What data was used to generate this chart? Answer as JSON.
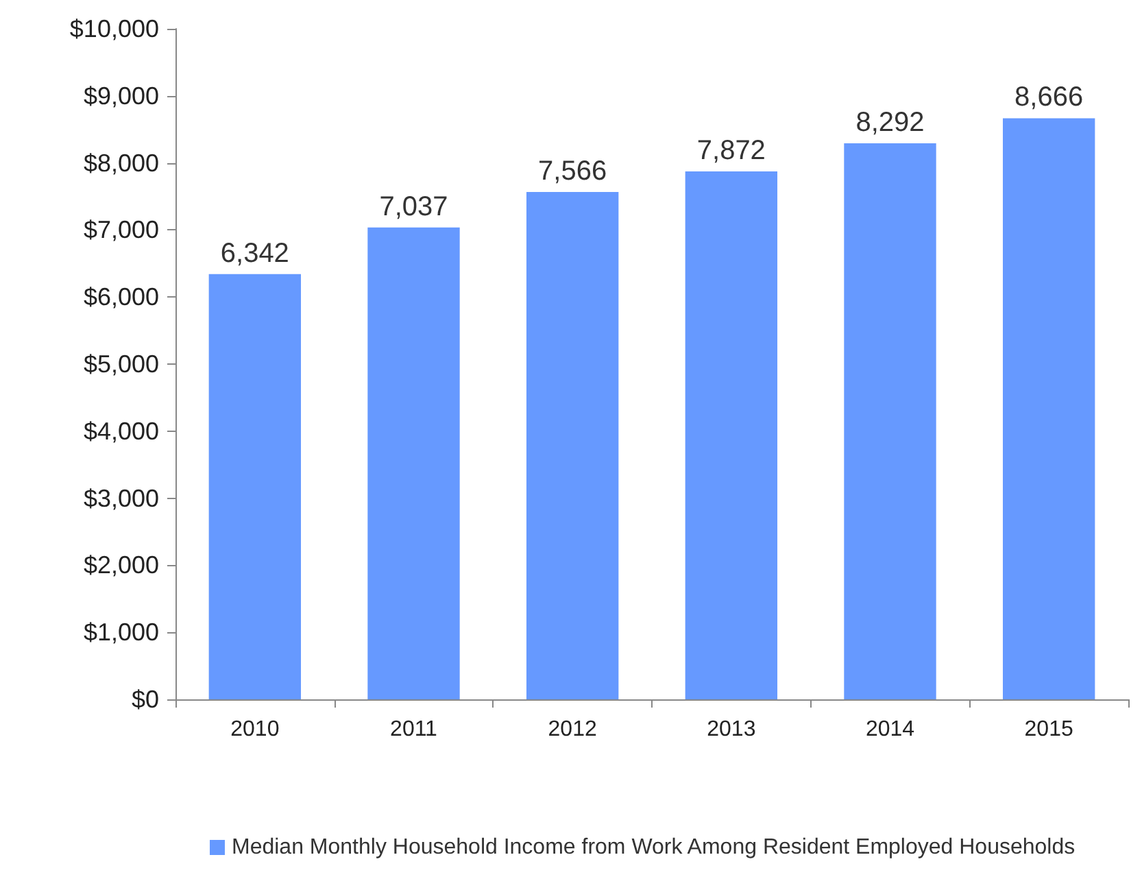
{
  "chart_data": {
    "type": "bar",
    "categories": [
      "2010",
      "2011",
      "2012",
      "2013",
      "2014",
      "2015"
    ],
    "series": [
      {
        "name": "Median Monthly Household Income from Work Among Resident Employed Households",
        "color": "#6699ff",
        "values": [
          6342,
          7037,
          7566,
          7872,
          8292,
          8666
        ],
        "value_labels": [
          "6,342",
          "7,037",
          "7,566",
          "7,872",
          "8,292",
          "8,666"
        ]
      }
    ],
    "ylim": [
      0,
      10000
    ],
    "yticks": [
      {
        "value": 0,
        "label": "$0"
      },
      {
        "value": 1000,
        "label": "$1,000"
      },
      {
        "value": 2000,
        "label": "$2,000"
      },
      {
        "value": 3000,
        "label": "$3,000"
      },
      {
        "value": 4000,
        "label": "$4,000"
      },
      {
        "value": 5000,
        "label": "$5,000"
      },
      {
        "value": 6000,
        "label": "$6,000"
      },
      {
        "value": 7000,
        "label": "$7,000"
      },
      {
        "value": 8000,
        "label": "$8,000"
      },
      {
        "value": 9000,
        "label": "$9,000"
      },
      {
        "value": 10000,
        "label": "$10,000"
      }
    ],
    "grid": false,
    "legend": "bottom"
  }
}
